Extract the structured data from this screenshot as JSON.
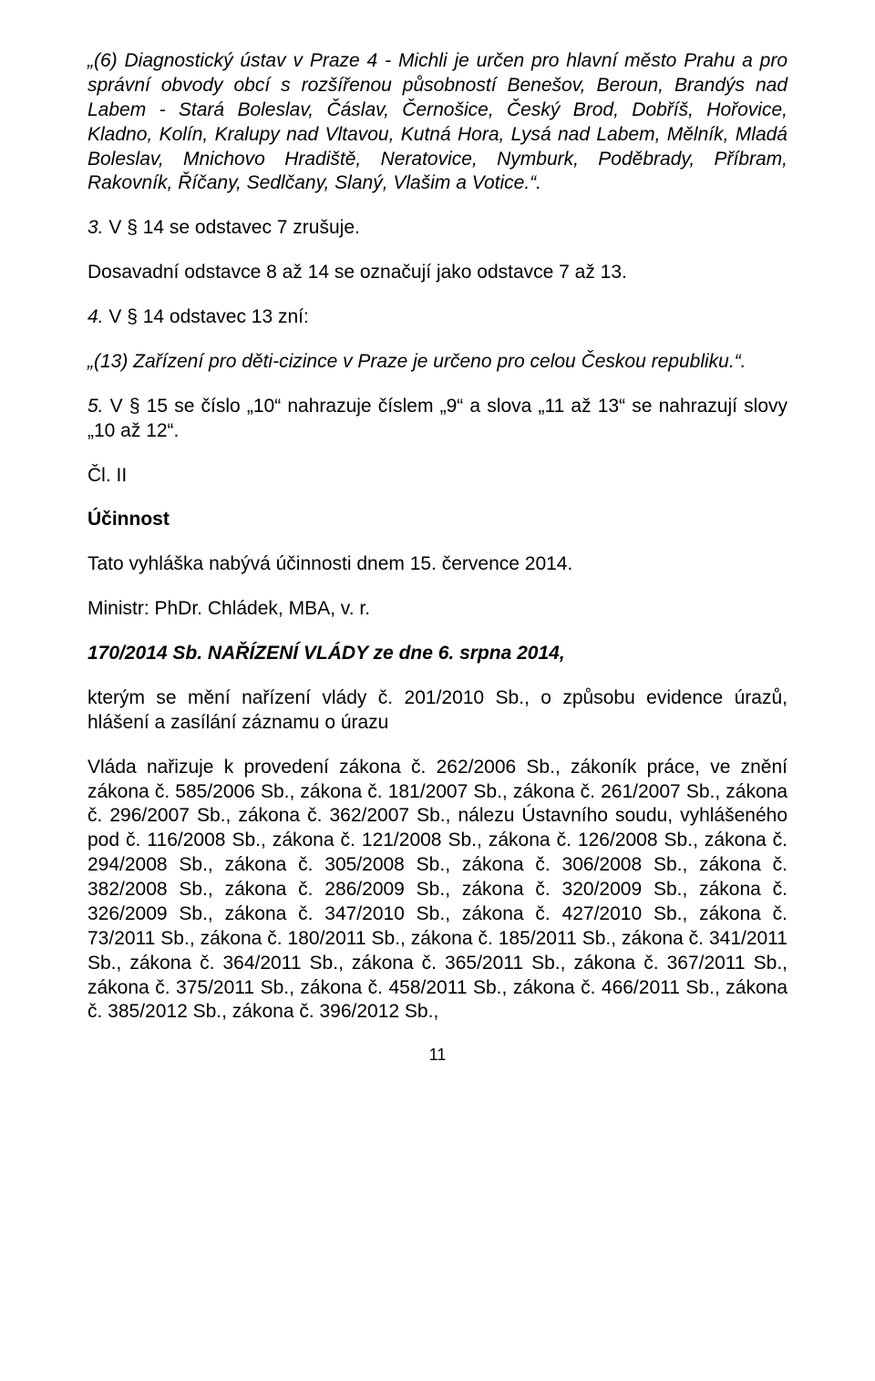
{
  "p1": "„(6) Diagnostický ústav v Praze 4 - Michli je určen pro hlavní město Prahu a pro správní obvody obcí s rozšířenou působností Benešov, Beroun, Brandýs nad Labem - Stará Boleslav, Čáslav, Černošice, Český Brod, Dobříš, Hořovice, Kladno, Kolín, Kralupy nad Vltavou, Kutná Hora, Lysá nad Labem, Mělník, Mladá Boleslav, Mnichovo Hradiště, Neratovice, Nymburk, Poděbrady, Příbram, Rakovník, Říčany, Sedlčany, Slaný, Vlašim a Votice.“.",
  "p2_i": "3.",
  "p2_r": " V § 14 se odstavec 7 zrušuje.",
  "p3": "Dosavadní odstavce 8 až 14 se označují jako odstavce 7 až 13.",
  "p4_i": "4.",
  "p4_r": " V § 14 odstavec 13 zní:",
  "p5": "„(13) Zařízení pro děti-cizince v Praze je určeno pro celou Českou republiku.“.",
  "p6_i": "5.",
  "p6_r": " V § 15 se číslo „10“ nahrazuje číslem „9“ a slova „11 až 13“ se nahrazují slovy „10 až 12“.",
  "p7": "Čl. II",
  "p8": "Účinnost",
  "p9": "Tato vyhláška nabývá účinnosti dnem 15. července 2014.",
  "p10": "Ministr: PhDr. Chládek, MBA, v. r.",
  "p11": "170/2014 Sb. NAŘÍZENÍ VLÁDY ze dne 6. srpna 2014,",
  "p12": "kterým se mění nařízení vlády č. 201/2010 Sb., o způsobu evidence úrazů, hlášení a zasílání záznamu o úrazu",
  "p13": "Vláda nařizuje k provedení zákona č. 262/2006 Sb., zákoník práce, ve znění zákona č. 585/2006 Sb., zákona č. 181/2007 Sb., zákona č. 261/2007 Sb., zákona č. 296/2007 Sb., zákona č. 362/2007 Sb., nálezu Ústavního soudu, vyhlášeného pod č. 116/2008 Sb., zákona č. 121/2008 Sb., zákona č. 126/2008 Sb., zákona č. 294/2008 Sb., zákona č. 305/2008 Sb., zákona č. 306/2008 Sb., zákona č. 382/2008 Sb., zákona č. 286/2009 Sb., zákona č. 320/2009 Sb., zákona č. 326/2009 Sb., zákona č. 347/2010 Sb., zákona č. 427/2010 Sb., zákona č. 73/2011 Sb., zákona č. 180/2011 Sb., zákona č. 185/2011 Sb., zákona č. 341/2011 Sb., zákona č. 364/2011 Sb., zákona č. 365/2011 Sb., zákona č. 367/2011 Sb., zákona č. 375/2011 Sb., zákona č. 458/2011 Sb., zákona č. 466/2011 Sb., zákona č. 385/2012 Sb., zákona č. 396/2012 Sb.,",
  "pagenum": "11"
}
